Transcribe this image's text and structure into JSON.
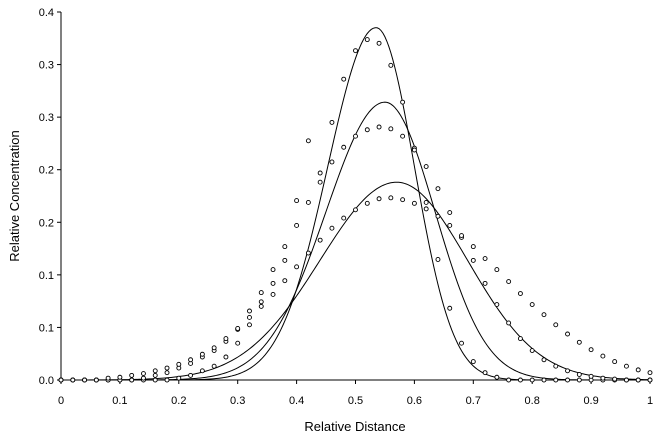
{
  "chart_data": {
    "type": "scatter",
    "xlabel": "Relative Distance",
    "ylabel": "Relative Concentration",
    "xlim": [
      0,
      1
    ],
    "ylim": [
      0,
      0.4
    ],
    "grid": false,
    "x_ticks": [
      "0",
      "0.1",
      "0.2",
      "0.3",
      "0.4",
      "0.5",
      "0.6",
      "0.7",
      "0.8",
      "0.9",
      "1"
    ],
    "y_ticks": [
      "0.0",
      "0.1",
      "0.1",
      "0.2",
      "0.2",
      "0.3",
      "0.3",
      "0.4"
    ],
    "series": [
      {
        "kind": "observed",
        "x": [
          0,
          0.02,
          0.04,
          0.06,
          0.08,
          0.1,
          0.12,
          0.14,
          0.16,
          0.18,
          0.2,
          0.22,
          0.24,
          0.26,
          0.28,
          0.3,
          0.32,
          0.34,
          0.36,
          0.38,
          0.4,
          0.42,
          0.44,
          0.46,
          0.48,
          0.5,
          0.52,
          0.54,
          0.56,
          0.58,
          0.6,
          0.62,
          0.64,
          0.66,
          0.68,
          0.7,
          0.72,
          0.74,
          0.76,
          0.78,
          0.8,
          0.82,
          0.84,
          0.86,
          0.88,
          0.9,
          0.92,
          0.94,
          0.96,
          0.98,
          1.0
        ],
        "y": [
          0,
          0,
          0,
          0,
          0,
          0,
          0,
          0,
          0,
          0,
          0.002,
          0.005,
          0.01,
          0.015,
          0.025,
          0.04,
          0.06,
          0.085,
          0.105,
          0.13,
          0.195,
          0.26,
          0.225,
          0.28,
          0.327,
          0.358,
          0.37,
          0.366,
          0.342,
          0.302,
          0.252,
          0.193,
          0.131,
          0.078,
          0.04,
          0.02,
          0.008,
          0.003,
          0,
          0,
          0,
          0,
          0,
          0,
          0,
          0,
          0,
          0,
          0,
          0,
          0
        ]
      },
      {
        "kind": "observed",
        "x": [
          0,
          0.02,
          0.04,
          0.06,
          0.08,
          0.1,
          0.12,
          0.14,
          0.16,
          0.18,
          0.2,
          0.22,
          0.24,
          0.26,
          0.28,
          0.3,
          0.32,
          0.34,
          0.36,
          0.38,
          0.4,
          0.42,
          0.44,
          0.46,
          0.48,
          0.5,
          0.52,
          0.54,
          0.56,
          0.58,
          0.6,
          0.62,
          0.64,
          0.66,
          0.68,
          0.7,
          0.72,
          0.74,
          0.76,
          0.78,
          0.8,
          0.82,
          0.84,
          0.86,
          0.88,
          0.9,
          0.92,
          0.94,
          0.96,
          0.98,
          1.0
        ],
        "y": [
          0,
          0,
          0,
          0,
          0,
          0,
          0,
          0.002,
          0.005,
          0.008,
          0.013,
          0.018,
          0.025,
          0.032,
          0.042,
          0.055,
          0.075,
          0.095,
          0.12,
          0.145,
          0.168,
          0.193,
          0.215,
          0.237,
          0.253,
          0.265,
          0.272,
          0.275,
          0.273,
          0.265,
          0.25,
          0.232,
          0.208,
          0.182,
          0.155,
          0.13,
          0.105,
          0.082,
          0.062,
          0.045,
          0.032,
          0.022,
          0.015,
          0.01,
          0.006,
          0.004,
          0.002,
          0.001,
          0,
          0,
          0
        ]
      },
      {
        "kind": "observed",
        "x": [
          0,
          0.02,
          0.04,
          0.06,
          0.08,
          0.1,
          0.12,
          0.14,
          0.16,
          0.18,
          0.2,
          0.22,
          0.24,
          0.26,
          0.28,
          0.3,
          0.32,
          0.34,
          0.36,
          0.38,
          0.4,
          0.42,
          0.44,
          0.46,
          0.48,
          0.5,
          0.52,
          0.54,
          0.56,
          0.58,
          0.6,
          0.62,
          0.64,
          0.66,
          0.68,
          0.7,
          0.72,
          0.74,
          0.76,
          0.78,
          0.8,
          0.82,
          0.84,
          0.86,
          0.88,
          0.9,
          0.92,
          0.94,
          0.96,
          0.98,
          1.0
        ],
        "y": [
          0,
          0,
          0,
          0,
          0.002,
          0.003,
          0.005,
          0.007,
          0.01,
          0.013,
          0.017,
          0.022,
          0.028,
          0.035,
          0.045,
          0.056,
          0.068,
          0.08,
          0.093,
          0.108,
          0.123,
          0.138,
          0.152,
          0.165,
          0.176,
          0.185,
          0.192,
          0.197,
          0.198,
          0.196,
          0.192,
          0.186,
          0.178,
          0.168,
          0.157,
          0.145,
          0.132,
          0.12,
          0.107,
          0.094,
          0.082,
          0.071,
          0.06,
          0.05,
          0.041,
          0.033,
          0.026,
          0.02,
          0.015,
          0.011,
          0.008
        ]
      },
      {
        "kind": "model",
        "peak_x": 0.535,
        "peak_y": 0.383,
        "sigma_left": 0.082,
        "sigma_right": 0.065
      },
      {
        "kind": "model",
        "peak_x": 0.55,
        "peak_y": 0.302,
        "sigma_left": 0.1,
        "sigma_right": 0.085
      },
      {
        "kind": "model",
        "peak_x": 0.57,
        "peak_y": 0.215,
        "sigma_left": 0.13,
        "sigma_right": 0.12
      }
    ]
  }
}
